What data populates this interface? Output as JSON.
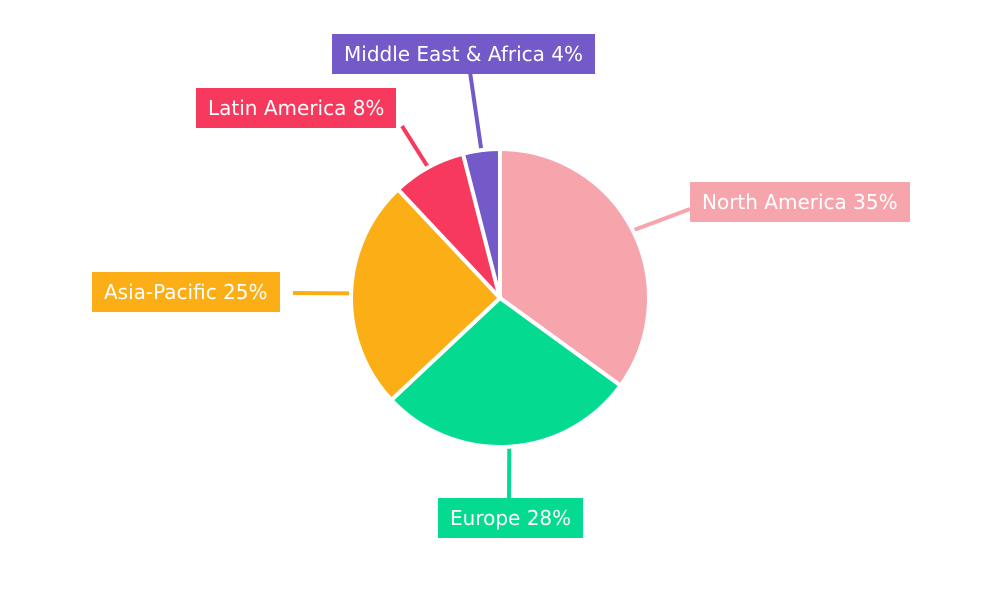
{
  "chart_data": {
    "type": "pie",
    "title": "",
    "categories": [
      "North America",
      "Europe",
      "Asia-Pacific",
      "Latin America",
      "Middle East & Africa"
    ],
    "values": [
      35,
      28,
      25,
      8,
      4
    ],
    "total": 100,
    "start_angle_deg": 0,
    "direction": "clockwise",
    "legend_position": "none",
    "label_style": "callout-boxes-with-leader-lines",
    "label_text_color": "#FFFFFF",
    "background_color": "#FFFFFF",
    "slice_separator_color": "#FFFFFF",
    "slices": [
      {
        "label": "North America",
        "value": 35,
        "pct_text": "35%",
        "label_text": "North America 35%",
        "color": "#F7A5AC"
      },
      {
        "label": "Europe",
        "value": 28,
        "pct_text": "28%",
        "label_text": "Europe 28%",
        "color": "#04DB90"
      },
      {
        "label": "Asia-Pacific",
        "value": 25,
        "pct_text": "25%",
        "label_text": "Asia-Pacific 25%",
        "color": "#FBAE15"
      },
      {
        "label": "Latin America",
        "value": 8,
        "pct_text": "8%",
        "label_text": "Latin America 8%",
        "color": "#F8395E"
      },
      {
        "label": "Middle East & Africa",
        "value": 4,
        "pct_text": "4%",
        "label_text": "Middle East & Africa 4%",
        "color": "#7459C8"
      }
    ]
  }
}
